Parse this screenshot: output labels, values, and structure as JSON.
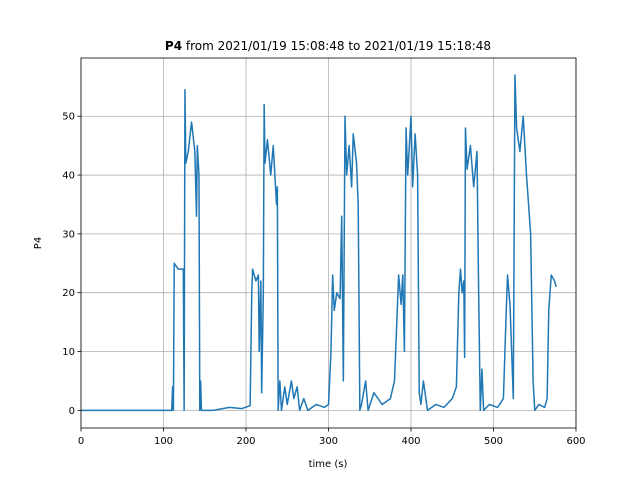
{
  "chart_data": {
    "type": "line",
    "title": {
      "name": "P4",
      "text": "from 2021/01/19 15:08:48 to 2021/01/19 15:18:48"
    },
    "xlabel": "time (s)",
    "ylabel": "P4",
    "xlim": [
      0,
      600
    ],
    "ylim": [
      -3,
      59.9
    ],
    "xticks": [
      0,
      100,
      200,
      300,
      400,
      500,
      600
    ],
    "yticks": [
      0,
      10,
      20,
      30,
      40,
      50
    ],
    "grid": true,
    "color": "#1f77b4",
    "x": [
      0,
      110,
      111,
      112,
      113,
      118,
      124,
      125,
      126,
      127,
      130,
      134,
      138,
      140,
      141,
      143,
      144,
      145,
      146,
      160,
      180,
      195,
      205,
      207,
      208,
      212,
      215,
      216,
      218,
      219,
      221,
      222,
      223,
      226,
      230,
      233,
      237,
      238,
      239,
      241,
      243,
      247,
      250,
      255,
      258,
      262,
      265,
      270,
      275,
      285,
      295,
      300,
      303,
      305,
      307,
      310,
      314,
      316,
      318,
      320,
      322,
      325,
      328,
      330,
      334,
      336,
      338,
      340,
      345,
      348,
      355,
      365,
      375,
      380,
      385,
      388,
      390,
      392,
      394,
      396,
      400,
      402,
      405,
      408,
      410,
      412,
      415,
      420,
      430,
      440,
      450,
      455,
      458,
      460,
      462,
      464,
      465,
      466,
      468,
      472,
      476,
      480,
      482,
      484,
      486,
      488,
      495,
      505,
      512,
      515,
      517,
      520,
      522,
      524,
      526,
      528,
      532,
      536,
      540,
      545,
      548,
      550,
      555,
      562,
      565,
      567,
      570,
      574,
      576
    ],
    "values": [
      0,
      0,
      4,
      0,
      25,
      24,
      24,
      0,
      54.5,
      42,
      44,
      49,
      44,
      33,
      45,
      40,
      0,
      5,
      0,
      0,
      0.5,
      0.3,
      0.8,
      20,
      24,
      22,
      23,
      10,
      22,
      3,
      20,
      52,
      42,
      46,
      40,
      45,
      35,
      38,
      0,
      5,
      0,
      4,
      1,
      5,
      2,
      4,
      0,
      2,
      0,
      1,
      0.5,
      1,
      10,
      23,
      17,
      20,
      19,
      33,
      5,
      50,
      40,
      45,
      38,
      47,
      42,
      35,
      0,
      1,
      5,
      0,
      3,
      1,
      2,
      5,
      23,
      18,
      23,
      10,
      48,
      40,
      50,
      38,
      47,
      40,
      3,
      1,
      5,
      0,
      1,
      0.5,
      2,
      4,
      20,
      24,
      20,
      22,
      9,
      48,
      41,
      45,
      38,
      44,
      20,
      0,
      7,
      0,
      1,
      0.5,
      2,
      15,
      23,
      18,
      10,
      2,
      57,
      48,
      44,
      50,
      40,
      30,
      5,
      0,
      1,
      0.5,
      2,
      17,
      23,
      22,
      21
    ]
  }
}
